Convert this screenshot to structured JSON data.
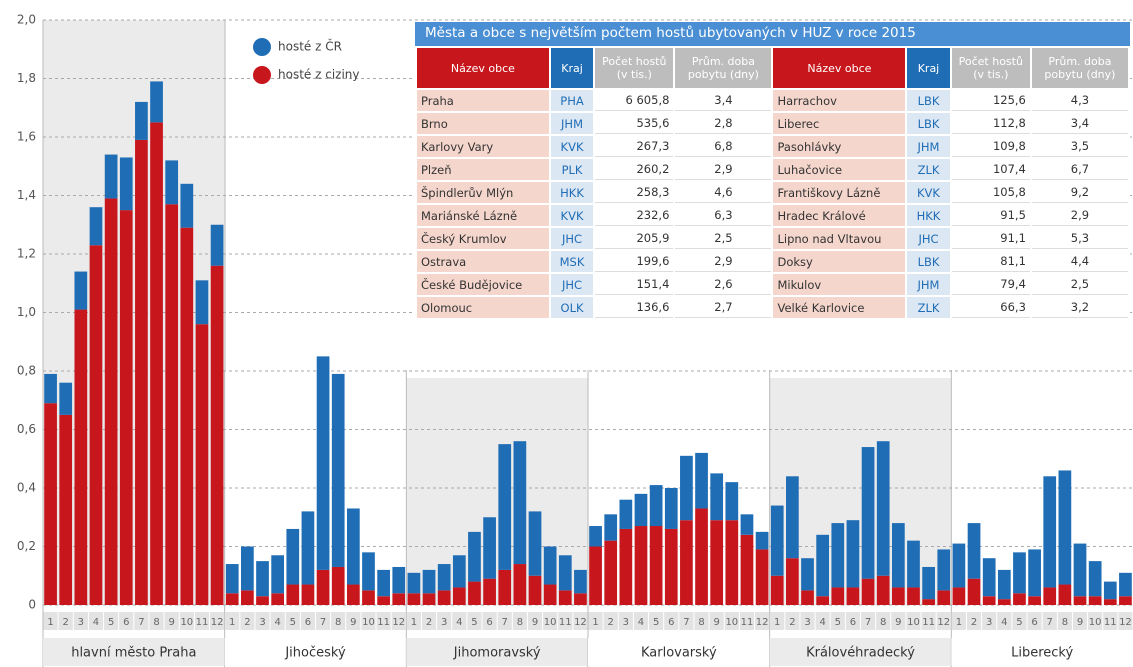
{
  "chart_data": {
    "type": "stacked-bar",
    "categories": [
      "1",
      "2",
      "3",
      "4",
      "5",
      "6",
      "7",
      "8",
      "9",
      "10",
      "11",
      "12",
      "1",
      "2",
      "3",
      "4",
      "5",
      "6",
      "7",
      "8",
      "9",
      "10",
      "11",
      "12",
      "1",
      "2",
      "3",
      "4",
      "5",
      "6",
      "7",
      "8",
      "9",
      "10",
      "11",
      "12",
      "1",
      "2",
      "3",
      "4",
      "5",
      "6",
      "7",
      "8",
      "9",
      "10",
      "11",
      "12",
      "1",
      "2",
      "3",
      "4",
      "5",
      "6",
      "7",
      "8",
      "9",
      "10",
      "11",
      "12",
      "1",
      "2",
      "3",
      "4",
      "5",
      "6",
      "7",
      "8",
      "9",
      "10",
      "11",
      "12"
    ],
    "regions": [
      "hlavní město Praha",
      "Jihočeský",
      "Jihomoravský",
      "Karlovarský",
      "Královéhradecký",
      "Liberecký"
    ],
    "series": [
      {
        "name": "hosté z ciziny",
        "color": "#c8161d",
        "values": [
          0.69,
          0.65,
          1.01,
          1.23,
          1.39,
          1.35,
          1.59,
          1.65,
          1.37,
          1.29,
          0.96,
          1.16,
          0.04,
          0.05,
          0.03,
          0.04,
          0.07,
          0.07,
          0.12,
          0.13,
          0.07,
          0.05,
          0.03,
          0.04,
          0.04,
          0.04,
          0.05,
          0.06,
          0.08,
          0.09,
          0.12,
          0.14,
          0.1,
          0.07,
          0.05,
          0.04,
          0.2,
          0.22,
          0.26,
          0.27,
          0.27,
          0.26,
          0.29,
          0.33,
          0.29,
          0.29,
          0.24,
          0.19,
          0.1,
          0.16,
          0.05,
          0.03,
          0.06,
          0.06,
          0.09,
          0.1,
          0.06,
          0.06,
          0.02,
          0.05,
          0.06,
          0.09,
          0.03,
          0.02,
          0.04,
          0.03,
          0.06,
          0.07,
          0.03,
          0.03,
          0.02,
          0.03
        ]
      },
      {
        "name": "hosté z ČR",
        "color": "#1f6db5",
        "values": [
          0.1,
          0.11,
          0.13,
          0.13,
          0.15,
          0.18,
          0.13,
          0.14,
          0.15,
          0.15,
          0.15,
          0.14,
          0.1,
          0.15,
          0.12,
          0.13,
          0.19,
          0.25,
          0.73,
          0.66,
          0.26,
          0.13,
          0.09,
          0.09,
          0.07,
          0.08,
          0.09,
          0.11,
          0.17,
          0.21,
          0.43,
          0.42,
          0.22,
          0.13,
          0.12,
          0.08,
          0.07,
          0.09,
          0.1,
          0.11,
          0.14,
          0.14,
          0.22,
          0.19,
          0.16,
          0.13,
          0.07,
          0.06,
          0.24,
          0.28,
          0.11,
          0.21,
          0.22,
          0.23,
          0.45,
          0.46,
          0.22,
          0.16,
          0.11,
          0.14,
          0.15,
          0.19,
          0.13,
          0.1,
          0.14,
          0.16,
          0.38,
          0.39,
          0.18,
          0.12,
          0.06,
          0.08
        ]
      }
    ],
    "ylim": [
      0,
      2
    ],
    "yticks": [
      0,
      {
        "value": 0.2,
        "label": "0,2"
      },
      {
        "value": 0.4,
        "label": "0,4"
      },
      {
        "value": 0.6,
        "label": "0,6"
      },
      {
        "value": 0.8,
        "label": "0,8"
      },
      {
        "value": 1.0,
        "label": "1,0"
      },
      {
        "value": 1.2,
        "label": "1,2"
      },
      {
        "value": 1.4,
        "label": "1,4"
      },
      {
        "value": 1.6,
        "label": "1,6"
      },
      {
        "value": 1.8,
        "label": "1,8"
      },
      {
        "value": 2.0,
        "label": "2,0"
      }
    ],
    "grid": true
  },
  "table": {
    "title": "Města a obce s největším počtem hostů ubytovaných v HUZ v roce 2015",
    "header": [
      "Název obce",
      "Kraj",
      "Počet hostů (v tis.)",
      "Prům. doba pobytu (dny)"
    ],
    "rows": [
      [
        "Praha",
        "PHA",
        "6 605,8",
        "3,4"
      ],
      [
        "Brno",
        "JHM",
        "535,6",
        "2,8"
      ],
      [
        "Karlovy Vary",
        "KVK",
        "267,3",
        "6,8"
      ],
      [
        "Plzeň",
        "PLK",
        "260,2",
        "2,9"
      ],
      [
        "Špindlerův Mlýn",
        "HKK",
        "258,3",
        "4,6"
      ],
      [
        "Mariánské Lázně",
        "KVK",
        "232,6",
        "6,3"
      ],
      [
        "Český Krumlov",
        "JHC",
        "205,9",
        "2,5"
      ],
      [
        "Ostrava",
        "MSK",
        "199,6",
        "2,9"
      ],
      [
        "České Budějovice",
        "JHC",
        "151,4",
        "2,6"
      ],
      [
        "Olomouc",
        "OLK",
        "136,6",
        "2,7"
      ],
      [
        "Harrachov",
        "LBK",
        "125,6",
        "4,3"
      ],
      [
        "Liberec",
        "LBK",
        "112,8",
        "3,4"
      ],
      [
        "Pasohlávky",
        "JHM",
        "109,8",
        "3,5"
      ],
      [
        "Luhačovice",
        "ZLK",
        "107,4",
        "6,7"
      ],
      [
        "Františkovy Lázně",
        "KVK",
        "105,8",
        "9,2"
      ],
      [
        "Hradec Králové",
        "HKK",
        "91,5",
        "2,9"
      ],
      [
        "Lipno nad Vltavou",
        "JHC",
        "91,1",
        "5,3"
      ],
      [
        "Doksy",
        "LBK",
        "81,1",
        "4,4"
      ],
      [
        "Mikulov",
        "JHM",
        "79,4",
        "2,5"
      ],
      [
        "Velké Karlovice",
        "ZLK",
        "66,3",
        "3,2"
      ]
    ]
  }
}
